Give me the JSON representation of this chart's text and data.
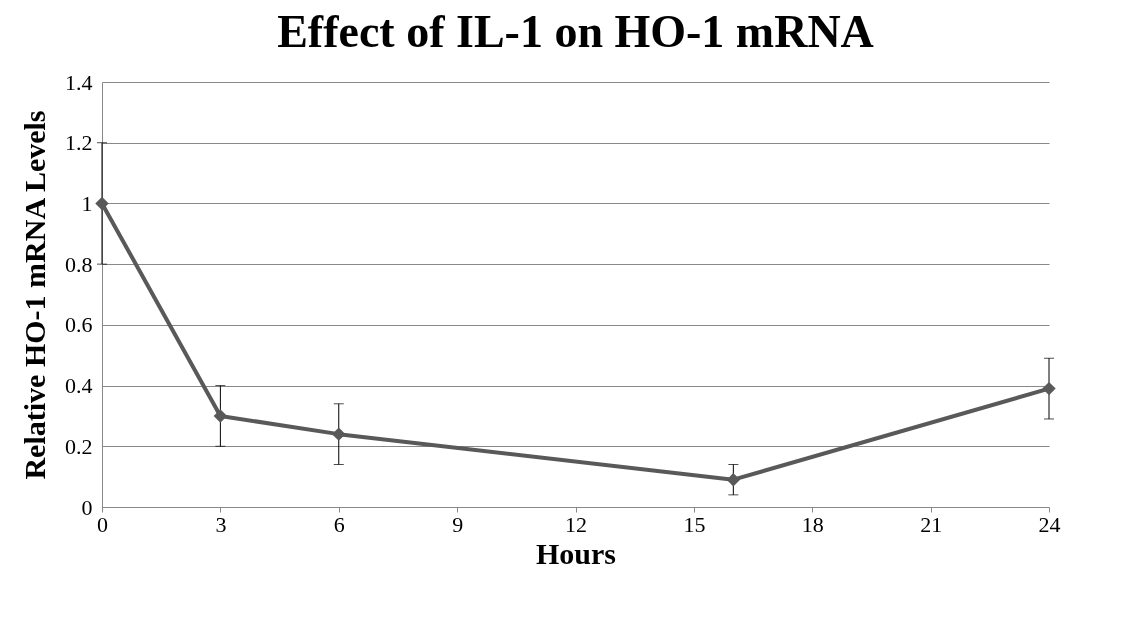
{
  "chart_data": {
    "type": "line",
    "title": "Effect of IL-1 on HO-1 mRNA",
    "xlabel": "Hours",
    "ylabel": "Relative HO-1 mRNA Levels",
    "x": [
      0,
      3,
      6,
      16,
      24
    ],
    "series": [
      {
        "color": "#595959",
        "values": [
          1.0,
          0.3,
          0.24,
          0.09,
          0.39
        ],
        "errors": [
          0.2,
          0.1,
          0.1,
          0.05,
          0.1
        ]
      }
    ],
    "xlim": [
      0,
      24
    ],
    "xticks": [
      0,
      3,
      6,
      9,
      12,
      15,
      18,
      21,
      24
    ],
    "ylim": [
      0,
      1.4
    ],
    "yticks": [
      0,
      0.2,
      0.4,
      0.6,
      0.8,
      1,
      1.2,
      1.4
    ],
    "grid": "y",
    "marker": "diamond",
    "line_style": "solid"
  }
}
